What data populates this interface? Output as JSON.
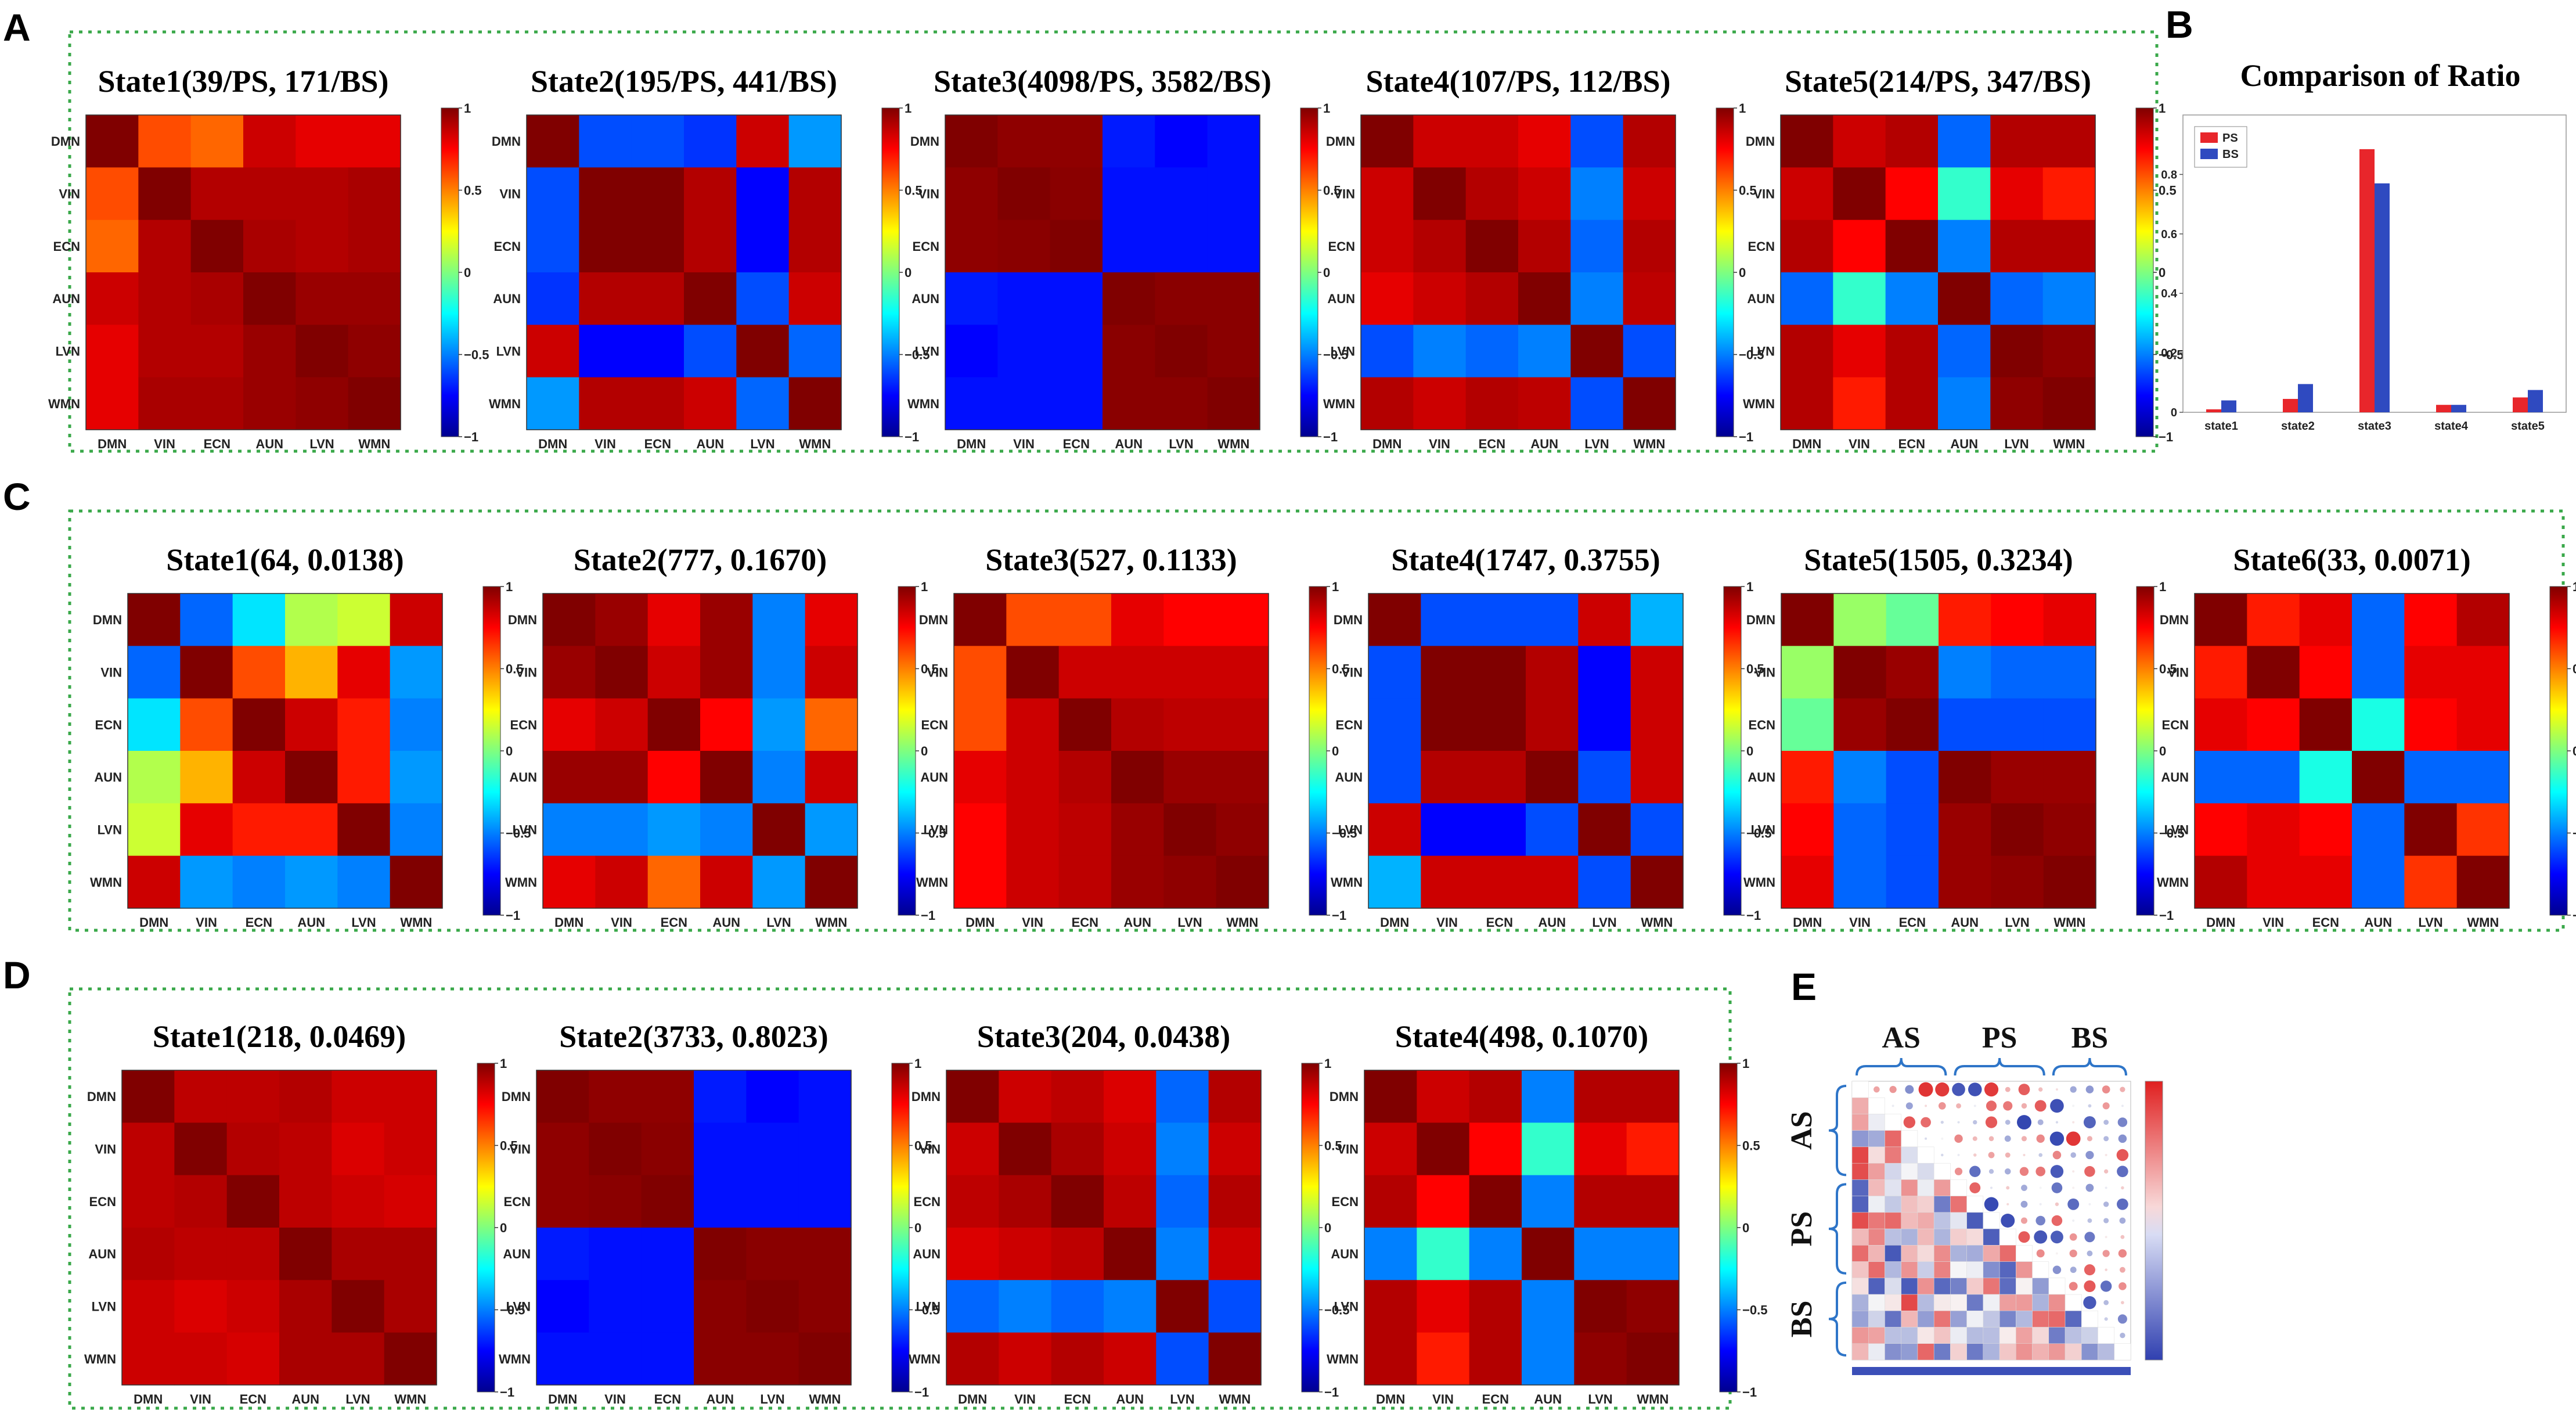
{
  "panel_labels": {
    "A": "A",
    "B": "B",
    "C": "C",
    "D": "D",
    "E": "E"
  },
  "colormap": "jet",
  "colorbar_ticks": [
    {
      "value": 1,
      "label": "1"
    },
    {
      "value": 0.5,
      "label": "0.5"
    },
    {
      "value": 0,
      "label": "0"
    },
    {
      "value": -0.5,
      "label": "−0.5"
    },
    {
      "value": -1,
      "label": "−1"
    }
  ],
  "networks": [
    "DMN",
    "VIN",
    "ECN",
    "AUN",
    "LVN",
    "WMN"
  ],
  "chart_data": [
    {
      "id": "A1",
      "type": "heatmap",
      "panel": "A",
      "title": "State1(39/PS, 171/BS)",
      "range": [
        -1,
        1
      ],
      "matrix": [
        [
          1.0,
          0.6,
          0.55,
          0.85,
          0.8,
          0.8
        ],
        [
          0.6,
          1.0,
          0.9,
          0.9,
          0.9,
          0.92
        ],
        [
          0.55,
          0.9,
          1.0,
          0.92,
          0.9,
          0.92
        ],
        [
          0.85,
          0.9,
          0.92,
          1.0,
          0.95,
          0.95
        ],
        [
          0.8,
          0.9,
          0.9,
          0.95,
          1.0,
          0.97
        ],
        [
          0.8,
          0.92,
          0.92,
          0.95,
          0.97,
          1.0
        ]
      ]
    },
    {
      "id": "A2",
      "type": "heatmap",
      "panel": "A",
      "title": "State2(195/PS, 441/BS)",
      "range": [
        -1,
        1
      ],
      "matrix": [
        [
          1.0,
          -0.6,
          -0.6,
          -0.65,
          0.85,
          -0.45
        ],
        [
          -0.6,
          1.0,
          1.0,
          0.9,
          -0.75,
          0.9
        ],
        [
          -0.6,
          1.0,
          1.0,
          0.9,
          -0.75,
          0.9
        ],
        [
          -0.65,
          0.9,
          0.9,
          1.0,
          -0.6,
          0.85
        ],
        [
          0.85,
          -0.75,
          -0.75,
          -0.6,
          1.0,
          -0.55
        ],
        [
          -0.45,
          0.9,
          0.9,
          0.85,
          -0.55,
          1.0
        ]
      ]
    },
    {
      "id": "A3",
      "type": "heatmap",
      "panel": "A",
      "title": "State3(4098/PS, 3582/BS)",
      "range": [
        -1,
        1
      ],
      "matrix": [
        [
          1.0,
          0.97,
          0.97,
          -0.7,
          -0.75,
          -0.72
        ],
        [
          0.97,
          1.0,
          0.98,
          -0.72,
          -0.72,
          -0.72
        ],
        [
          0.97,
          0.98,
          1.0,
          -0.72,
          -0.72,
          -0.72
        ],
        [
          -0.7,
          -0.72,
          -0.72,
          1.0,
          0.98,
          0.98
        ],
        [
          -0.75,
          -0.72,
          -0.72,
          0.98,
          1.0,
          0.98
        ],
        [
          -0.72,
          -0.72,
          -0.72,
          0.98,
          0.98,
          1.0
        ]
      ]
    },
    {
      "id": "A4",
      "type": "heatmap",
      "panel": "A",
      "title": "State4(107/PS, 112/BS)",
      "range": [
        -1,
        1
      ],
      "matrix": [
        [
          1.0,
          0.85,
          0.85,
          0.8,
          -0.6,
          0.9
        ],
        [
          0.85,
          1.0,
          0.9,
          0.85,
          -0.5,
          0.85
        ],
        [
          0.85,
          0.9,
          1.0,
          0.9,
          -0.55,
          0.9
        ],
        [
          0.8,
          0.85,
          0.9,
          1.0,
          -0.5,
          0.88
        ],
        [
          -0.6,
          -0.5,
          -0.55,
          -0.5,
          1.0,
          -0.6
        ],
        [
          0.9,
          0.85,
          0.9,
          0.88,
          -0.6,
          1.0
        ]
      ]
    },
    {
      "id": "A5",
      "type": "heatmap",
      "panel": "A",
      "title": "State5(214/PS, 347/BS)",
      "range": [
        -1,
        1
      ],
      "matrix": [
        [
          1.0,
          0.85,
          0.9,
          -0.55,
          0.9,
          0.9
        ],
        [
          0.85,
          1.0,
          0.75,
          -0.15,
          0.8,
          0.7
        ],
        [
          0.9,
          0.75,
          1.0,
          -0.5,
          0.9,
          0.9
        ],
        [
          -0.55,
          -0.15,
          -0.5,
          1.0,
          -0.55,
          -0.5
        ],
        [
          0.9,
          0.8,
          0.9,
          -0.55,
          1.0,
          0.97
        ],
        [
          0.9,
          0.7,
          0.9,
          -0.5,
          0.97,
          1.0
        ]
      ]
    },
    {
      "id": "B",
      "type": "bar",
      "panel": "B",
      "title": "Comparison of Ratio",
      "categories": [
        "state1",
        "state2",
        "state3",
        "state4",
        "state5"
      ],
      "series": [
        {
          "name": "PS",
          "color": "#e8262b",
          "values": [
            0.01,
            0.045,
            0.885,
            0.025,
            0.05
          ]
        },
        {
          "name": "BS",
          "color": "#2f4ac0",
          "values": [
            0.04,
            0.095,
            0.77,
            0.025,
            0.075
          ]
        }
      ],
      "ylim": [
        0,
        1
      ],
      "yticks": [
        0,
        0.2,
        0.4,
        0.6,
        0.8
      ],
      "ytick_labels": [
        "0",
        "0.2",
        "0.4",
        "0.6",
        "0.8"
      ]
    },
    {
      "id": "C1",
      "type": "heatmap",
      "panel": "C",
      "title": "State1(64, 0.0138)",
      "range": [
        -1,
        1
      ],
      "matrix": [
        [
          1.0,
          -0.55,
          -0.3,
          0.1,
          0.15,
          0.85
        ],
        [
          -0.55,
          1.0,
          0.6,
          0.4,
          0.8,
          -0.45
        ],
        [
          -0.3,
          0.6,
          1.0,
          0.85,
          0.7,
          -0.5
        ],
        [
          0.1,
          0.4,
          0.85,
          1.0,
          0.7,
          -0.45
        ],
        [
          0.15,
          0.8,
          0.7,
          0.7,
          1.0,
          -0.5
        ],
        [
          0.85,
          -0.45,
          -0.5,
          -0.45,
          -0.5,
          1.0
        ]
      ]
    },
    {
      "id": "C2",
      "type": "heatmap",
      "panel": "C",
      "title": "State2(777, 0.1670)",
      "range": [
        -1,
        1
      ],
      "matrix": [
        [
          1.0,
          0.95,
          0.8,
          0.95,
          -0.5,
          0.8
        ],
        [
          0.95,
          1.0,
          0.85,
          0.95,
          -0.5,
          0.85
        ],
        [
          0.8,
          0.85,
          1.0,
          0.75,
          -0.45,
          0.55
        ],
        [
          0.95,
          0.95,
          0.75,
          1.0,
          -0.5,
          0.85
        ],
        [
          -0.5,
          -0.5,
          -0.45,
          -0.5,
          1.0,
          -0.45
        ],
        [
          0.8,
          0.85,
          0.55,
          0.85,
          -0.45,
          1.0
        ]
      ]
    },
    {
      "id": "C3",
      "type": "heatmap",
      "panel": "C",
      "title": "State3(527, 0.1133)",
      "range": [
        -1,
        1
      ],
      "matrix": [
        [
          1.0,
          0.6,
          0.6,
          0.8,
          0.75,
          0.75
        ],
        [
          0.6,
          1.0,
          0.85,
          0.85,
          0.85,
          0.85
        ],
        [
          0.6,
          0.85,
          1.0,
          0.9,
          0.88,
          0.88
        ],
        [
          0.8,
          0.85,
          0.9,
          1.0,
          0.95,
          0.95
        ],
        [
          0.75,
          0.85,
          0.88,
          0.95,
          1.0,
          0.97
        ],
        [
          0.75,
          0.85,
          0.88,
          0.95,
          0.97,
          1.0
        ]
      ]
    },
    {
      "id": "C4",
      "type": "heatmap",
      "panel": "C",
      "title": "State4(1747, 0.3755)",
      "range": [
        -1,
        1
      ],
      "matrix": [
        [
          1.0,
          -0.6,
          -0.6,
          -0.6,
          0.85,
          -0.4
        ],
        [
          -0.6,
          1.0,
          1.0,
          0.9,
          -0.75,
          0.85
        ],
        [
          -0.6,
          1.0,
          1.0,
          0.9,
          -0.75,
          0.85
        ],
        [
          -0.6,
          0.9,
          0.9,
          1.0,
          -0.6,
          0.85
        ],
        [
          0.85,
          -0.75,
          -0.75,
          -0.6,
          1.0,
          -0.6
        ],
        [
          -0.4,
          0.85,
          0.85,
          0.85,
          -0.6,
          1.0
        ]
      ]
    },
    {
      "id": "C5",
      "type": "heatmap",
      "panel": "C",
      "title": "State5(1505, 0.3234)",
      "range": [
        -1,
        1
      ],
      "matrix": [
        [
          1.0,
          0.05,
          -0.05,
          0.7,
          0.75,
          0.8
        ],
        [
          0.05,
          1.0,
          0.95,
          -0.5,
          -0.55,
          -0.55
        ],
        [
          -0.05,
          0.95,
          1.0,
          -0.6,
          -0.6,
          -0.6
        ],
        [
          0.7,
          -0.5,
          -0.6,
          1.0,
          0.95,
          0.95
        ],
        [
          0.75,
          -0.55,
          -0.6,
          0.95,
          1.0,
          0.97
        ],
        [
          0.8,
          -0.55,
          -0.6,
          0.95,
          0.97,
          1.0
        ]
      ]
    },
    {
      "id": "C6",
      "type": "heatmap",
      "panel": "C",
      "title": "State6(33, 0.0071)",
      "range": [
        -1,
        1
      ],
      "matrix": [
        [
          1.0,
          0.7,
          0.8,
          -0.55,
          0.75,
          0.9
        ],
        [
          0.7,
          1.0,
          0.75,
          -0.55,
          0.8,
          0.8
        ],
        [
          0.8,
          0.75,
          1.0,
          -0.2,
          0.75,
          0.8
        ],
        [
          -0.55,
          -0.55,
          -0.2,
          1.0,
          -0.55,
          -0.55
        ],
        [
          0.75,
          0.8,
          0.75,
          -0.55,
          1.0,
          0.65
        ],
        [
          0.9,
          0.8,
          0.8,
          -0.55,
          0.65,
          1.0
        ]
      ]
    },
    {
      "id": "D1",
      "type": "heatmap",
      "panel": "D",
      "title": "State1(218, 0.0469)",
      "range": [
        -1,
        1
      ],
      "matrix": [
        [
          1.0,
          0.88,
          0.88,
          0.9,
          0.85,
          0.85
        ],
        [
          0.88,
          1.0,
          0.9,
          0.88,
          0.82,
          0.85
        ],
        [
          0.88,
          0.9,
          1.0,
          0.88,
          0.85,
          0.83
        ],
        [
          0.9,
          0.88,
          0.88,
          1.0,
          0.92,
          0.92
        ],
        [
          0.85,
          0.82,
          0.85,
          0.92,
          1.0,
          0.92
        ],
        [
          0.85,
          0.85,
          0.83,
          0.92,
          0.92,
          1.0
        ]
      ]
    },
    {
      "id": "D2",
      "type": "heatmap",
      "panel": "D",
      "title": "State2(3733, 0.8023)",
      "range": [
        -1,
        1
      ],
      "matrix": [
        [
          1.0,
          0.97,
          0.97,
          -0.7,
          -0.75,
          -0.72
        ],
        [
          0.97,
          1.0,
          0.98,
          -0.72,
          -0.72,
          -0.72
        ],
        [
          0.97,
          0.98,
          1.0,
          -0.72,
          -0.72,
          -0.72
        ],
        [
          -0.7,
          -0.72,
          -0.72,
          1.0,
          0.98,
          0.98
        ],
        [
          -0.75,
          -0.72,
          -0.72,
          0.98,
          1.0,
          0.98
        ],
        [
          -0.72,
          -0.72,
          -0.72,
          0.98,
          0.98,
          1.0
        ]
      ]
    },
    {
      "id": "D3",
      "type": "heatmap",
      "panel": "D",
      "title": "State3(204, 0.0438)",
      "range": [
        -1,
        1
      ],
      "matrix": [
        [
          1.0,
          0.85,
          0.88,
          0.82,
          -0.55,
          0.9
        ],
        [
          0.85,
          1.0,
          0.92,
          0.85,
          -0.5,
          0.85
        ],
        [
          0.88,
          0.92,
          1.0,
          0.88,
          -0.55,
          0.9
        ],
        [
          0.82,
          0.85,
          0.88,
          1.0,
          -0.5,
          0.85
        ],
        [
          -0.55,
          -0.5,
          -0.55,
          -0.5,
          1.0,
          -0.6
        ],
        [
          0.9,
          0.85,
          0.9,
          0.85,
          -0.6,
          1.0
        ]
      ]
    },
    {
      "id": "D4",
      "type": "heatmap",
      "panel": "D",
      "title": "State4(498, 0.1070)",
      "range": [
        -1,
        1
      ],
      "matrix": [
        [
          1.0,
          0.85,
          0.9,
          -0.5,
          0.9,
          0.9
        ],
        [
          0.85,
          1.0,
          0.75,
          -0.15,
          0.8,
          0.7
        ],
        [
          0.9,
          0.75,
          1.0,
          -0.5,
          0.9,
          0.9
        ],
        [
          -0.5,
          -0.15,
          -0.5,
          1.0,
          -0.5,
          -0.5
        ],
        [
          0.9,
          0.8,
          0.9,
          -0.5,
          1.0,
          0.97
        ],
        [
          0.9,
          0.7,
          0.9,
          -0.5,
          0.97,
          1.0
        ]
      ]
    },
    {
      "id": "E",
      "type": "heatmap",
      "panel": "E",
      "title": "",
      "groups": [
        "AS",
        "PS",
        "BS"
      ],
      "group_sizes": [
        6,
        6,
        5
      ],
      "range": [
        -1,
        1
      ]
    }
  ]
}
